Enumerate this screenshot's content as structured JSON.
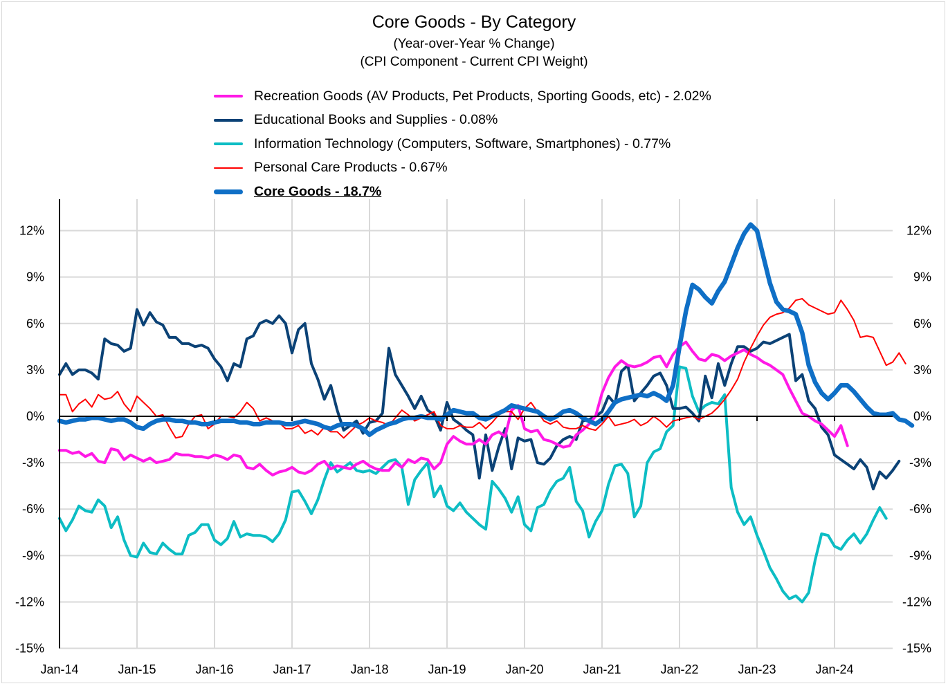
{
  "chart_data": {
    "type": "line",
    "title": "Core Goods - By Category",
    "subtitle_lines": [
      "(Year-over-Year % Change)",
      "(CPI Component - Current CPI Weight)"
    ],
    "xlabel": "",
    "ylabel": "",
    "x_start": "Jan-14",
    "x_frequency": "monthly",
    "x_tick_labels": [
      "Jan-14",
      "Jan-15",
      "Jan-16",
      "Jan-17",
      "Jan-18",
      "Jan-19",
      "Jan-20",
      "Jan-21",
      "Jan-22",
      "Jan-23",
      "Jan-24"
    ],
    "y_tick_labels": [
      "12%",
      "9%",
      "6%",
      "3%",
      "0%",
      "-3%",
      "-6%",
      "-9%",
      "-12%",
      "-15%"
    ],
    "y_ticks": [
      12,
      9,
      6,
      3,
      0,
      -3,
      -6,
      -9,
      -12,
      -15
    ],
    "ylim": [
      -15,
      14
    ],
    "y_axis_both_sides": true,
    "grid": true,
    "legend_position": "top",
    "series": [
      {
        "name": "Recreation Goods (AV Products, Pet Products, Sporting Goods, etc) - 2.02%",
        "color": "#FF19E6",
        "weight": "normal",
        "values": [
          -2.2,
          -2.2,
          -2.4,
          -2.3,
          -2.6,
          -2.4,
          -2.9,
          -3.0,
          -2.1,
          -2.2,
          -2.8,
          -2.5,
          -2.7,
          -2.9,
          -2.7,
          -3.0,
          -2.9,
          -2.8,
          -2.4,
          -2.5,
          -2.5,
          -2.6,
          -2.6,
          -2.7,
          -2.5,
          -2.6,
          -2.8,
          -2.5,
          -2.6,
          -3.3,
          -3.4,
          -3.1,
          -3.5,
          -3.8,
          -3.6,
          -3.5,
          -3.3,
          -3.6,
          -3.7,
          -3.5,
          -3.1,
          -2.9,
          -3.4,
          -3.2,
          -3.3,
          -3.4,
          -3.1,
          -2.9,
          -3.2,
          -3.4,
          -3.5,
          -3.5,
          -3.0,
          -3.3,
          -2.8,
          -3.0,
          -2.7,
          -2.8,
          -3.4,
          -3.0,
          -1.8,
          -1.3,
          -1.6,
          -1.8,
          -1.8,
          -1.5,
          -1.8,
          -1.2,
          -1.0,
          -1.3,
          0.4,
          0.7,
          -0.8,
          -1.0,
          -0.9,
          -1.5,
          -1.6,
          -1.8,
          -2.0,
          -1.9,
          -1.2,
          -0.9,
          -0.5,
          0.0,
          1.5,
          2.5,
          3.2,
          3.6,
          3.3,
          3.2,
          3.3,
          3.5,
          3.8,
          3.9,
          3.2,
          4.0,
          4.5,
          4.8,
          4.2,
          3.7,
          3.6,
          4.0,
          3.9,
          3.6,
          3.9,
          4.1,
          4.3,
          4.0,
          3.8,
          3.5,
          3.3,
          3.0,
          2.7,
          1.8,
          1.0,
          0.2,
          0.0,
          -0.3,
          -0.5,
          -0.9,
          -1.3,
          -0.6,
          -1.9
        ]
      },
      {
        "name": "Educational Books and Supplies - 0.08%",
        "color": "#0B4276",
        "weight": "normal",
        "values": [
          2.7,
          3.4,
          2.7,
          3.0,
          3.0,
          2.8,
          2.4,
          5.0,
          4.7,
          4.6,
          4.2,
          4.4,
          6.9,
          5.9,
          6.7,
          6.1,
          5.9,
          5.1,
          5.1,
          4.7,
          4.7,
          4.5,
          4.6,
          4.4,
          3.7,
          3.2,
          2.3,
          3.4,
          3.2,
          5.0,
          5.2,
          6.0,
          6.2,
          6.0,
          6.5,
          6.0,
          4.1,
          5.6,
          6.0,
          3.4,
          2.4,
          1.1,
          2.0,
          0.4,
          -0.9,
          -0.6,
          -0.3,
          -1.1,
          -0.4,
          -0.3,
          0.2,
          4.4,
          2.7,
          2.0,
          1.3,
          0.5,
          1.3,
          0.4,
          0.1,
          -0.9,
          0.9,
          -0.2,
          -0.5,
          -0.9,
          -1.2,
          -4.0,
          -1.2,
          -3.5,
          -2.0,
          -0.8,
          -3.4,
          -1.4,
          -1.6,
          -1.5,
          -3.0,
          -3.1,
          -2.7,
          -1.9,
          -1.5,
          -1.3,
          -1.5,
          -0.3,
          -0.2,
          0.0,
          0.3,
          1.3,
          0.8,
          2.9,
          3.3,
          1.0,
          1.5,
          2.0,
          2.6,
          2.8,
          2.0,
          0.5,
          0.5,
          0.6,
          0.2,
          -0.3,
          2.6,
          1.2,
          3.4,
          2.0,
          3.4,
          4.5,
          4.5,
          4.2,
          4.4,
          4.8,
          4.7,
          4.9,
          5.1,
          5.3,
          2.3,
          2.7,
          1.0,
          0.5,
          -0.7,
          -1.2,
          -2.5,
          -2.8,
          -3.1,
          -3.4,
          -2.8,
          -3.3,
          -4.7,
          -3.6,
          -4.0,
          -3.5,
          -2.9
        ]
      },
      {
        "name": "Information Technology (Computers, Software, Smartphones) - 0.77%",
        "color": "#0DBDC4",
        "weight": "normal",
        "values": [
          -6.6,
          -7.4,
          -6.7,
          -5.8,
          -6.1,
          -6.2,
          -5.4,
          -5.8,
          -7.2,
          -6.5,
          -8.0,
          -9.0,
          -9.1,
          -8.2,
          -8.8,
          -8.9,
          -8.2,
          -8.6,
          -8.9,
          -8.9,
          -7.7,
          -7.5,
          -7.0,
          -7.0,
          -8.0,
          -8.3,
          -7.9,
          -6.8,
          -7.8,
          -7.6,
          -7.7,
          -7.7,
          -7.8,
          -8.1,
          -7.6,
          -6.7,
          -4.9,
          -4.8,
          -5.5,
          -6.3,
          -5.4,
          -4.1,
          -3.0,
          -3.6,
          -3.3,
          -3.0,
          -3.5,
          -3.6,
          -3.5,
          -3.7,
          -3.3,
          -2.9,
          -2.8,
          -3.3,
          -5.7,
          -4.1,
          -3.5,
          -3.0,
          -5.2,
          -4.5,
          -5.8,
          -6.1,
          -5.6,
          -6.2,
          -6.6,
          -7.0,
          -7.3,
          -4.2,
          -4.7,
          -5.3,
          -6.2,
          -5.2,
          -7.0,
          -7.4,
          -5.9,
          -5.7,
          -4.8,
          -4.2,
          -4.0,
          -3.3,
          -5.5,
          -6.1,
          -7.8,
          -6.8,
          -6.1,
          -4.4,
          -3.2,
          -3.1,
          -3.7,
          -6.5,
          -5.8,
          -3.0,
          -2.3,
          -2.1,
          -1.0,
          -0.6,
          3.2,
          3.1,
          1.3,
          0.3,
          0.7,
          0.9,
          0.8,
          1.4,
          -4.6,
          -6.2,
          -7.0,
          -6.5,
          -7.7,
          -8.7,
          -9.8,
          -10.5,
          -11.3,
          -11.8,
          -11.6,
          -12.0,
          -11.4,
          -9.3,
          -7.6,
          -7.7,
          -8.4,
          -8.6,
          -8.0,
          -7.6,
          -8.2,
          -7.6,
          -6.7,
          -5.9,
          -6.6
        ]
      },
      {
        "name": "Personal Care Products - 0.67%",
        "color": "#FF0000",
        "weight": "normal",
        "values": [
          1.4,
          1.4,
          0.3,
          0.8,
          1.1,
          0.6,
          1.4,
          1.1,
          1.2,
          1.6,
          0.8,
          0.3,
          1.3,
          0.9,
          0.5,
          0.0,
          0.1,
          -0.7,
          -1.4,
          -1.3,
          -0.5,
          -0.0,
          0.1,
          -0.8,
          -0.5,
          -0.0,
          0.0,
          -0.1,
          0.3,
          0.9,
          0.5,
          -0.3,
          -0.1,
          -0.3,
          -0.4,
          -0.8,
          -0.8,
          -0.6,
          -1.1,
          -0.9,
          -1.2,
          -0.7,
          -1.0,
          -1.0,
          -1.4,
          -1.0,
          -0.6,
          -0.4,
          -0.1,
          -0.3,
          -0.4,
          -0.6,
          -0.1,
          0.4,
          0.1,
          -0.3,
          -0.1,
          0.1,
          0.3,
          -0.6,
          -0.8,
          -0.8,
          -0.6,
          -0.7,
          -0.7,
          -0.4,
          -0.8,
          -0.4,
          0.1,
          0.3,
          0.3,
          -0.2,
          0.5,
          0.9,
          0.3,
          -0.3,
          -0.5,
          -0.3,
          -0.7,
          -0.8,
          -0.8,
          -0.6,
          -0.8,
          -0.9,
          -0.5,
          0.0,
          -0.6,
          -0.5,
          -0.4,
          -0.2,
          -0.6,
          -0.4,
          0.0,
          -0.3,
          -0.7,
          -0.3,
          -0.2,
          -0.1,
          0.0,
          -0.2,
          0.0,
          0.2,
          0.6,
          1.1,
          1.7,
          2.4,
          3.5,
          4.4,
          5.2,
          5.9,
          6.4,
          6.6,
          6.7,
          7.0,
          7.5,
          7.6,
          7.2,
          7.0,
          6.8,
          6.6,
          6.7,
          7.5,
          6.9,
          6.2,
          5.1,
          5.2,
          5.1,
          4.2,
          3.3,
          3.5,
          4.1,
          3.4
        ]
      },
      {
        "name": "Core Goods - 18.7%",
        "color": "#0F6FC6",
        "weight": "bold",
        "values": [
          -0.3,
          -0.4,
          -0.3,
          -0.2,
          -0.2,
          -0.1,
          -0.1,
          -0.2,
          -0.3,
          -0.2,
          -0.2,
          -0.4,
          -0.7,
          -0.8,
          -0.5,
          -0.3,
          -0.2,
          -0.2,
          -0.3,
          -0.3,
          -0.4,
          -0.4,
          -0.5,
          -0.5,
          -0.4,
          -0.3,
          -0.3,
          -0.3,
          -0.4,
          -0.4,
          -0.5,
          -0.5,
          -0.4,
          -0.4,
          -0.4,
          -0.5,
          -0.5,
          -0.4,
          -0.3,
          -0.4,
          -0.5,
          -0.7,
          -0.8,
          -0.6,
          -0.5,
          -0.5,
          -0.6,
          -0.8,
          -1.2,
          -0.9,
          -0.7,
          -0.5,
          -0.4,
          -0.2,
          -0.1,
          -0.1,
          0.0,
          -0.1,
          -0.1,
          -0.2,
          0.1,
          0.4,
          0.3,
          0.2,
          0.2,
          -0.1,
          -0.2,
          0.0,
          0.2,
          0.4,
          0.7,
          0.6,
          0.5,
          0.4,
          0.3,
          0.0,
          -0.2,
          0.0,
          0.3,
          0.4,
          0.2,
          -0.1,
          -0.3,
          -0.5,
          -0.2,
          0.3,
          0.9,
          1.1,
          1.2,
          1.3,
          1.4,
          1.3,
          1.5,
          1.3,
          1.0,
          2.0,
          4.5,
          6.8,
          8.5,
          8.2,
          7.7,
          7.3,
          8.1,
          8.7,
          9.8,
          10.9,
          11.8,
          12.4,
          12.0,
          10.3,
          8.6,
          7.4,
          6.9,
          6.8,
          6.6,
          5.4,
          3.3,
          2.2,
          1.5,
          1.1,
          1.5,
          2.0,
          2.0,
          1.6,
          1.1,
          0.6,
          0.2,
          0.1,
          0.1,
          0.2,
          -0.2,
          -0.3,
          -0.6
        ]
      }
    ]
  },
  "colors": {
    "grid": "#D9D9D9",
    "axis": "#000000",
    "background": "#FFFFFF"
  }
}
